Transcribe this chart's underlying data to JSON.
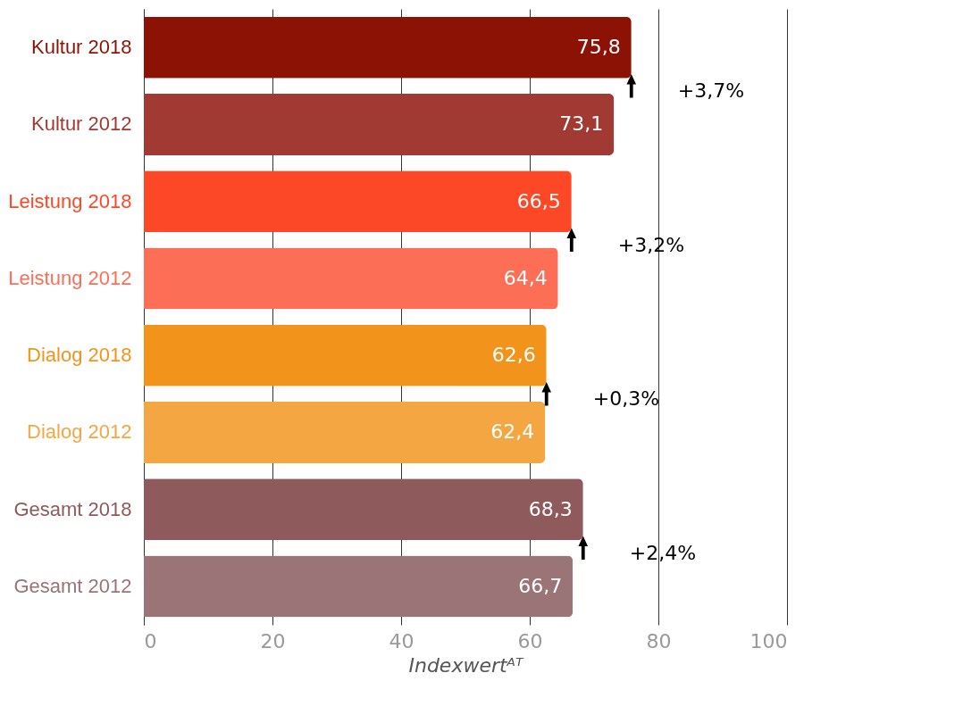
{
  "chart_data": {
    "type": "bar",
    "orientation": "horizontal",
    "categories": [
      "Kultur 2018",
      "Kultur 2012",
      "Leistung 2018",
      "Leistung 2012",
      "Dialog 2018",
      "Dialog 2012",
      "Gesamt 2018",
      "Gesamt 2012"
    ],
    "values": [
      75.8,
      73.1,
      66.5,
      64.4,
      62.6,
      62.4,
      68.3,
      66.7
    ],
    "colors": [
      "#8b1204",
      "#a03a33",
      "#fc4826",
      "#fc6e55",
      "#f2931b",
      "#f4a642",
      "#8e5a5c",
      "#9a7476"
    ],
    "value_labels": [
      "75,8",
      "73,1",
      "66,5",
      "64,4",
      "62,6",
      "62,4",
      "68,3",
      "66,7"
    ],
    "xlabel": "Indexwertᴬᵀ",
    "xlim": [
      0,
      100
    ],
    "xticks": [
      0,
      20,
      40,
      60,
      80,
      100
    ],
    "grid": "x",
    "annotations": [
      "+3,7%",
      "+3,2%",
      "+0,3%",
      "+2,4%"
    ]
  }
}
